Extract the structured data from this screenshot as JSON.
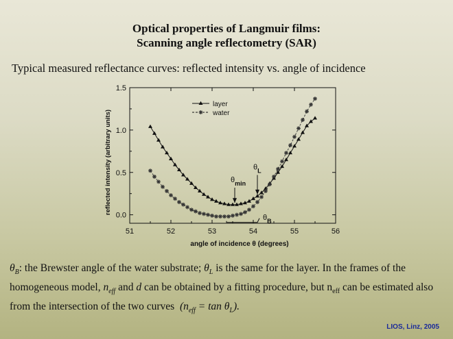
{
  "slide": {
    "title_line1": "Optical properties of Langmuir films:",
    "title_line2": "Scanning angle reflectometry (SAR)",
    "subtitle": "Typical measured reflectance curves: reflected intensity vs. angle of incidence",
    "caption": {
      "brewster_sym": "θB",
      "part1": ": the Brewster angle of the water substrate;",
      "layer_sym": "θL",
      "part2": "is the same for the layer. In the frames of the homogeneous model,",
      "neff_italic": "neff",
      "part3": "and",
      "d_italic": "d",
      "part4": "can be obtained by a fitting procedure, but n",
      "neff_sub": "eff",
      "part5": "can be estimated  also from the intersection of the two curves",
      "formula": "(neff = tan θL)."
    },
    "credit": "LIOS, Linz, 2005"
  },
  "chart_data": {
    "type": "line",
    "xlabel": "angle of incidence θ (degrees)",
    "ylabel": "reflected intensity (arbitrary units)",
    "xlim": [
      51,
      56
    ],
    "ylim": [
      -0.1,
      1.5
    ],
    "xticks": [
      "51",
      "52",
      "53",
      "54",
      "55",
      "56"
    ],
    "yticks": [
      "0.0",
      "0.5",
      "1.0",
      "1.5"
    ],
    "grid": false,
    "legend_position": "top-left",
    "series": [
      {
        "name": "layer",
        "marker": "triangle",
        "line": "solid",
        "points": [
          [
            51.5,
            1.04
          ],
          [
            51.6,
            0.96
          ],
          [
            51.7,
            0.88
          ],
          [
            51.8,
            0.8
          ],
          [
            51.9,
            0.73
          ],
          [
            52.0,
            0.66
          ],
          [
            52.1,
            0.59
          ],
          [
            52.2,
            0.53
          ],
          [
            52.3,
            0.47
          ],
          [
            52.4,
            0.42
          ],
          [
            52.5,
            0.37
          ],
          [
            52.6,
            0.32
          ],
          [
            52.7,
            0.28
          ],
          [
            52.8,
            0.24
          ],
          [
            52.9,
            0.21
          ],
          [
            53.0,
            0.18
          ],
          [
            53.1,
            0.16
          ],
          [
            53.2,
            0.14
          ],
          [
            53.3,
            0.13
          ],
          [
            53.4,
            0.12
          ],
          [
            53.5,
            0.12
          ],
          [
            53.6,
            0.12
          ],
          [
            53.7,
            0.13
          ],
          [
            53.8,
            0.14
          ],
          [
            53.9,
            0.16
          ],
          [
            54.0,
            0.19
          ],
          [
            54.1,
            0.22
          ],
          [
            54.2,
            0.26
          ],
          [
            54.3,
            0.31
          ],
          [
            54.4,
            0.37
          ],
          [
            54.5,
            0.43
          ],
          [
            54.6,
            0.5
          ],
          [
            54.7,
            0.57
          ],
          [
            54.8,
            0.65
          ],
          [
            54.9,
            0.73
          ],
          [
            55.0,
            0.81
          ],
          [
            55.1,
            0.89
          ],
          [
            55.2,
            0.97
          ],
          [
            55.3,
            1.05
          ],
          [
            55.4,
            1.1
          ],
          [
            55.5,
            1.14
          ]
        ]
      },
      {
        "name": "water",
        "marker": "star",
        "line": "dashed",
        "points": [
          [
            51.5,
            0.52
          ],
          [
            51.6,
            0.45
          ],
          [
            51.7,
            0.39
          ],
          [
            51.8,
            0.33
          ],
          [
            51.9,
            0.28
          ],
          [
            52.0,
            0.23
          ],
          [
            52.1,
            0.19
          ],
          [
            52.2,
            0.15
          ],
          [
            52.3,
            0.12
          ],
          [
            52.4,
            0.09
          ],
          [
            52.5,
            0.06
          ],
          [
            52.6,
            0.04
          ],
          [
            52.7,
            0.02
          ],
          [
            52.8,
            0.01
          ],
          [
            52.9,
            0.0
          ],
          [
            53.0,
            -0.01
          ],
          [
            53.1,
            -0.02
          ],
          [
            53.2,
            -0.02
          ],
          [
            53.3,
            -0.02
          ],
          [
            53.4,
            -0.02
          ],
          [
            53.5,
            -0.01
          ],
          [
            53.6,
            0.0
          ],
          [
            53.7,
            0.01
          ],
          [
            53.8,
            0.03
          ],
          [
            53.9,
            0.06
          ],
          [
            54.0,
            0.1
          ],
          [
            54.1,
            0.15
          ],
          [
            54.2,
            0.21
          ],
          [
            54.3,
            0.28
          ],
          [
            54.4,
            0.36
          ],
          [
            54.5,
            0.45
          ],
          [
            54.6,
            0.54
          ],
          [
            54.7,
            0.63
          ],
          [
            54.8,
            0.73
          ],
          [
            54.9,
            0.82
          ],
          [
            55.0,
            0.92
          ],
          [
            55.1,
            1.02
          ],
          [
            55.2,
            1.12
          ],
          [
            55.3,
            1.22
          ],
          [
            55.4,
            1.3
          ],
          [
            55.5,
            1.37
          ]
        ]
      }
    ],
    "annotations": [
      {
        "label": "θmin",
        "base": "θ",
        "sub": "min",
        "arrow_from": [
          53.55,
          0.32
        ],
        "arrow_to": [
          53.55,
          0.14
        ]
      },
      {
        "label": "θL",
        "base": "θ",
        "sub": "L",
        "arrow_from": [
          54.1,
          0.47
        ],
        "arrow_to": [
          54.1,
          0.24
        ]
      },
      {
        "label": "θB",
        "base": "θ",
        "sub": "B",
        "bracket": [
          [
            53.35,
            -0.09
          ],
          [
            54.1,
            -0.09
          ]
        ]
      }
    ]
  }
}
